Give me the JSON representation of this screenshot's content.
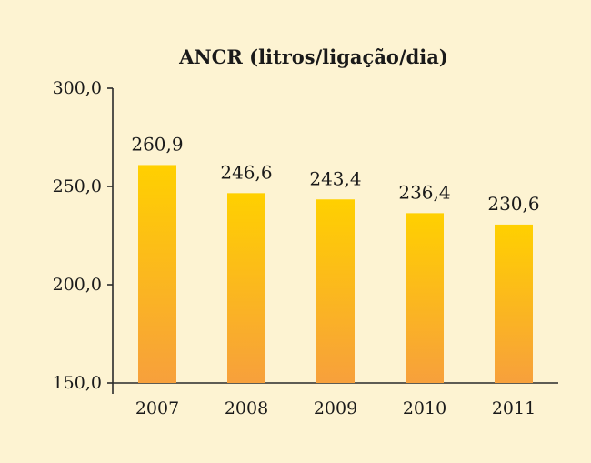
{
  "chart_data": {
    "type": "bar",
    "title": "ANCR (litros/ligação/dia)",
    "categories": [
      "2007",
      "2008",
      "2009",
      "2010",
      "2011"
    ],
    "values": [
      260.9,
      246.6,
      243.4,
      236.4,
      230.6
    ],
    "value_labels": [
      "260,9",
      "246,6",
      "243,4",
      "236,4",
      "230,6"
    ],
    "ylim": [
      150,
      300
    ],
    "yticks": [
      150,
      200,
      250,
      300
    ],
    "ytick_labels": [
      "150,0",
      "200,0",
      "250,0",
      "300,0"
    ],
    "xlabel": "",
    "ylabel": "",
    "grid": false,
    "legend": "none",
    "colors": {
      "bar_top": "#ffd000",
      "bar_bottom": "#f7a03c",
      "background": "#fdf3d2",
      "axis": "#2a2a2a"
    }
  }
}
